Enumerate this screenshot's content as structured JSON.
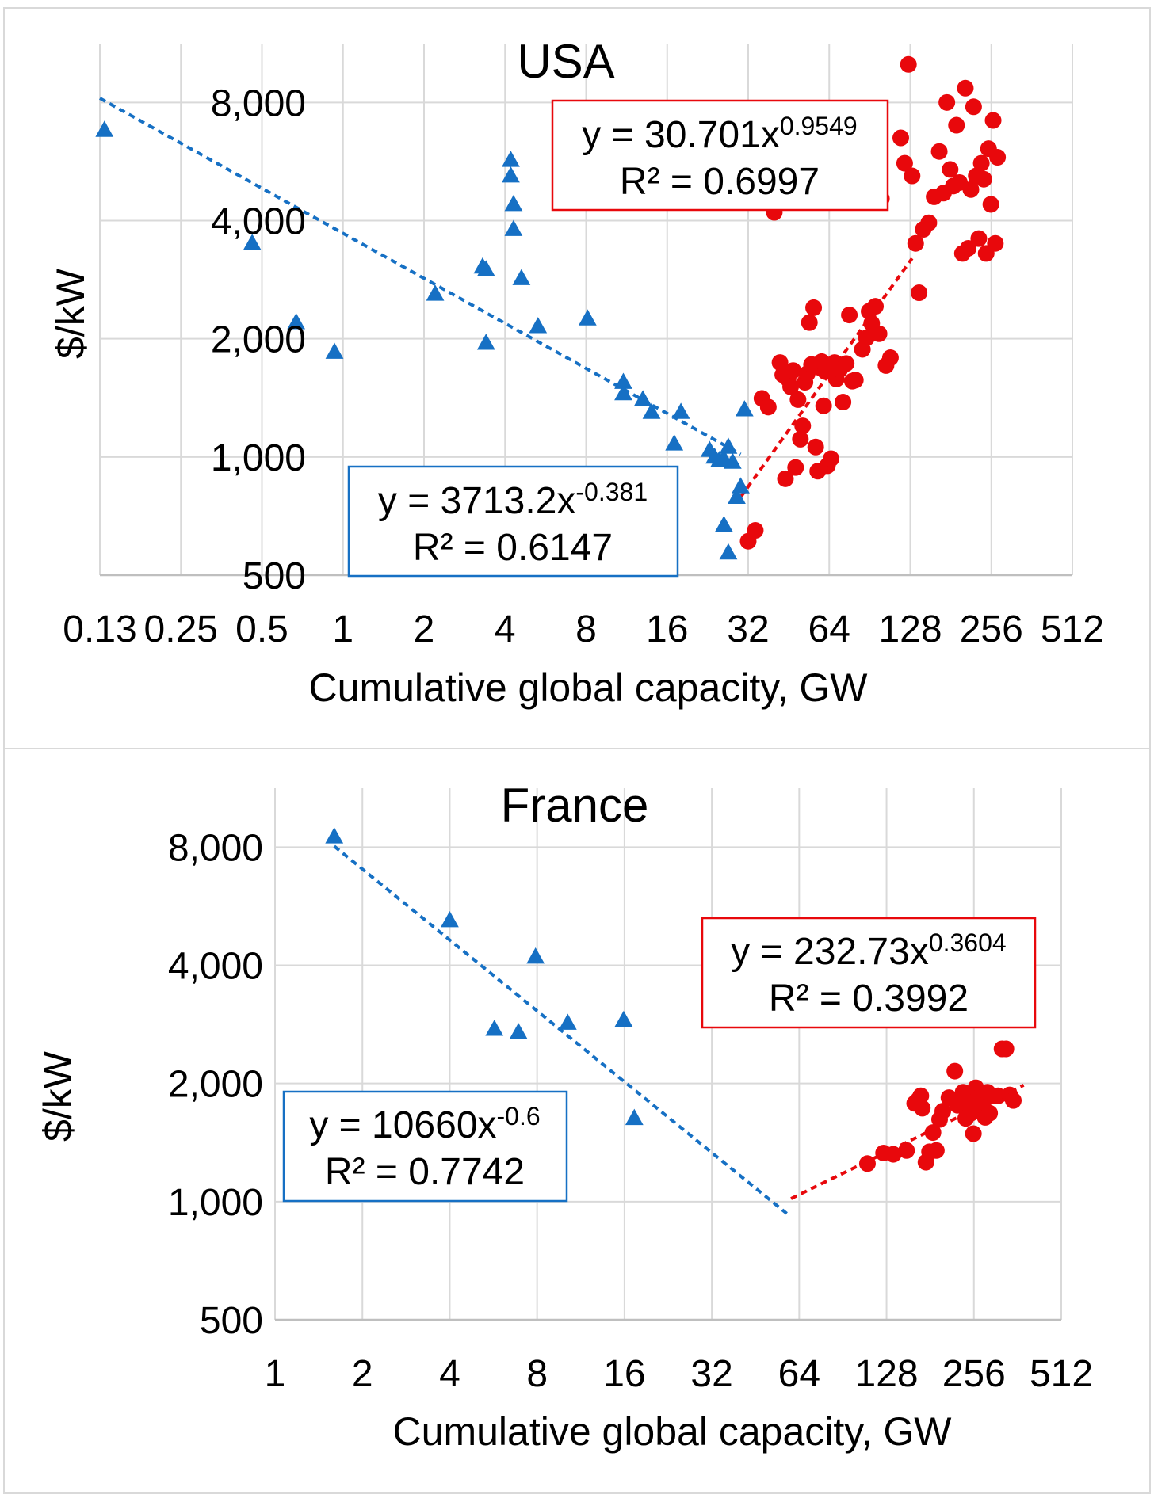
{
  "colors": {
    "early_series": "#1670c4",
    "late_series": "#e8080c",
    "grid": "#d9d9d9",
    "panel_border": "#d9d9d9"
  },
  "chart_data": [
    {
      "type": "scatter",
      "title": "USA",
      "xlabel": "Cumulative global capacity, GW",
      "ylabel": "$/kW",
      "x_scale": "log2",
      "y_scale": "log2",
      "xlim": [
        0.125,
        512
      ],
      "ylim": [
        500,
        11300
      ],
      "x_ticks": [
        0.125,
        0.25,
        0.5,
        1,
        2,
        4,
        8,
        16,
        32,
        64,
        128,
        256,
        512
      ],
      "x_tick_labels": [
        "0.13",
        "0.25",
        "0.5",
        "1",
        "2",
        "4",
        "8",
        "16",
        "32",
        "64",
        "128",
        "256",
        "512"
      ],
      "y_ticks": [
        500,
        1000,
        2000,
        4000,
        8000
      ],
      "y_tick_labels": [
        "500",
        "1,000",
        "2,000",
        "4,000",
        "8,000"
      ],
      "grid": true,
      "series": [
        {
          "marker": "triangle",
          "color": "#1670c4",
          "points": [
            [
              0.13,
              6800
            ],
            [
              0.46,
              3500
            ],
            [
              0.67,
              2200
            ],
            [
              0.93,
              1850
            ],
            [
              2.2,
              2600
            ],
            [
              3.3,
              3050
            ],
            [
              3.4,
              3000
            ],
            [
              3.4,
              1950
            ],
            [
              4.2,
              5700
            ],
            [
              4.2,
              5200
            ],
            [
              4.3,
              4400
            ],
            [
              4.3,
              3800
            ],
            [
              4.6,
              2850
            ],
            [
              5.3,
              2150
            ],
            [
              8.1,
              2250
            ],
            [
              11,
              1450
            ],
            [
              11,
              1550
            ],
            [
              13,
              1400
            ],
            [
              14,
              1300
            ],
            [
              17,
              1080
            ],
            [
              18,
              1300
            ],
            [
              23,
              1040
            ],
            [
              24,
              1000
            ],
            [
              25,
              980
            ],
            [
              26,
              990
            ],
            [
              27,
              1060
            ],
            [
              28,
              970
            ],
            [
              26,
              670
            ],
            [
              27,
              570
            ],
            [
              29,
              790
            ],
            [
              30,
              840
            ],
            [
              31,
              1320
            ]
          ]
        },
        {
          "marker": "circle",
          "color": "#e8080c",
          "points": [
            [
              32,
              610
            ],
            [
              34,
              650
            ],
            [
              36,
              1410
            ],
            [
              38,
              1340
            ],
            [
              40,
              4200
            ],
            [
              42,
              1740
            ],
            [
              43,
              1620
            ],
            [
              44,
              880
            ],
            [
              45,
              1580
            ],
            [
              46,
              1510
            ],
            [
              47,
              1660
            ],
            [
              48,
              940
            ],
            [
              49,
              1400
            ],
            [
              50,
              1110
            ],
            [
              51,
              1200
            ],
            [
              52,
              1550
            ],
            [
              53,
              1630
            ],
            [
              54,
              2200
            ],
            [
              55,
              1720
            ],
            [
              56,
              2400
            ],
            [
              57,
              1060
            ],
            [
              58,
              920
            ],
            [
              59,
              1690
            ],
            [
              60,
              1750
            ],
            [
              61,
              1350
            ],
            [
              62,
              1650
            ],
            [
              63,
              950
            ],
            [
              65,
              990
            ],
            [
              67,
              1740
            ],
            [
              68,
              1580
            ],
            [
              70,
              1670
            ],
            [
              72,
              1380
            ],
            [
              74,
              1730
            ],
            [
              76,
              2300
            ],
            [
              78,
              1560
            ],
            [
              80,
              1570
            ],
            [
              85,
              1880
            ],
            [
              88,
              2010
            ],
            [
              90,
              2350
            ],
            [
              92,
              2190
            ],
            [
              95,
              2420
            ],
            [
              98,
              2060
            ],
            [
              100,
              4550
            ],
            [
              104,
              1710
            ],
            [
              108,
              1790
            ],
            [
              118,
              6500
            ],
            [
              122,
              5600
            ],
            [
              126,
              10000
            ],
            [
              130,
              5200
            ],
            [
              134,
              3500
            ],
            [
              138,
              2620
            ],
            [
              143,
              3800
            ],
            [
              150,
              3950
            ],
            [
              157,
              4600
            ],
            [
              164,
              6000
            ],
            [
              170,
              4700
            ],
            [
              175,
              8000
            ],
            [
              180,
              5400
            ],
            [
              185,
              4900
            ],
            [
              190,
              7000
            ],
            [
              195,
              5000
            ],
            [
              200,
              3300
            ],
            [
              205,
              8700
            ],
            [
              210,
              3400
            ],
            [
              215,
              4800
            ],
            [
              220,
              7800
            ],
            [
              225,
              5200
            ],
            [
              230,
              3600
            ],
            [
              235,
              5600
            ],
            [
              240,
              5100
            ],
            [
              245,
              3300
            ],
            [
              250,
              6100
            ],
            [
              255,
              4400
            ],
            [
              260,
              7200
            ],
            [
              265,
              3500
            ],
            [
              270,
              5800
            ]
          ]
        }
      ],
      "annotations": [
        {
          "color": "#e8080c",
          "equation_base": "y = 30.701x",
          "exponent": "0.9549",
          "r2": "R² = 0.6997"
        },
        {
          "color": "#1670c4",
          "equation_base": "y = 3713.2x",
          "exponent": "-0.381",
          "r2": "R² = 0.6147"
        }
      ],
      "trendlines": [
        {
          "color": "#1670c4",
          "coef": 3713.2,
          "exp": -0.381,
          "x_range": [
            0.125,
            30
          ]
        },
        {
          "color": "#e8080c",
          "coef": 30.701,
          "exp": 0.9549,
          "x_range": [
            30,
            130
          ]
        }
      ]
    },
    {
      "type": "scatter",
      "title": "France",
      "xlabel": "Cumulative global capacity, GW",
      "ylabel": "$/kW",
      "x_scale": "log2",
      "y_scale": "log2",
      "xlim": [
        1,
        512
      ],
      "ylim": [
        500,
        11300
      ],
      "x_ticks": [
        1,
        2,
        4,
        8,
        16,
        32,
        64,
        128,
        256,
        512
      ],
      "x_tick_labels": [
        "1",
        "2",
        "4",
        "8",
        "16",
        "32",
        "64",
        "128",
        "256",
        "512"
      ],
      "y_ticks": [
        500,
        1000,
        2000,
        4000,
        8000
      ],
      "y_tick_labels": [
        "500",
        "1,000",
        "2,000",
        "4,000",
        "8,000"
      ],
      "grid": true,
      "series": [
        {
          "marker": "triangle",
          "color": "#1670c4",
          "points": [
            [
              1.6,
              8500
            ],
            [
              4,
              5200
            ],
            [
              5.7,
              2750
            ],
            [
              6.9,
              2700
            ],
            [
              7.9,
              4200
            ],
            [
              10.2,
              2850
            ],
            [
              15.9,
              2900
            ],
            [
              17.3,
              1630
            ]
          ]
        },
        {
          "marker": "circle",
          "color": "#e8080c",
          "points": [
            [
              110,
              1250
            ],
            [
              125,
              1330
            ],
            [
              135,
              1320
            ],
            [
              150,
              1350
            ],
            [
              160,
              1780
            ],
            [
              165,
              1820
            ],
            [
              168,
              1860
            ],
            [
              170,
              1730
            ],
            [
              175,
              1260
            ],
            [
              180,
              1340
            ],
            [
              185,
              1500
            ],
            [
              190,
              1350
            ],
            [
              195,
              1620
            ],
            [
              200,
              1700
            ],
            [
              210,
              1840
            ],
            [
              220,
              2150
            ],
            [
              225,
              1760
            ],
            [
              230,
              1790
            ],
            [
              235,
              1900
            ],
            [
              240,
              1630
            ],
            [
              245,
              1780
            ],
            [
              250,
              1680
            ],
            [
              255,
              1490
            ],
            [
              260,
              1950
            ],
            [
              265,
              1840
            ],
            [
              270,
              1800
            ],
            [
              275,
              1760
            ],
            [
              280,
              1640
            ],
            [
              285,
              1900
            ],
            [
              290,
              1680
            ],
            [
              300,
              1860
            ],
            [
              310,
              1860
            ],
            [
              320,
              2450
            ],
            [
              330,
              2450
            ],
            [
              340,
              1870
            ],
            [
              350,
              1810
            ]
          ]
        }
      ],
      "annotations": [
        {
          "color": "#e8080c",
          "equation_base": "y = 232.73x",
          "exponent": "0.3604",
          "r2": "R² = 0.3992"
        },
        {
          "color": "#1670c4",
          "equation_base": "y = 10660x",
          "exponent": "-0.6",
          "r2": "R² = 0.7742"
        }
      ],
      "trendlines": [
        {
          "color": "#1670c4",
          "coef": 10660,
          "exp": -0.6,
          "x_range": [
            1.6,
            58
          ]
        },
        {
          "color": "#e8080c",
          "coef": 232.73,
          "exp": 0.3604,
          "x_range": [
            60,
            380
          ]
        }
      ]
    }
  ]
}
